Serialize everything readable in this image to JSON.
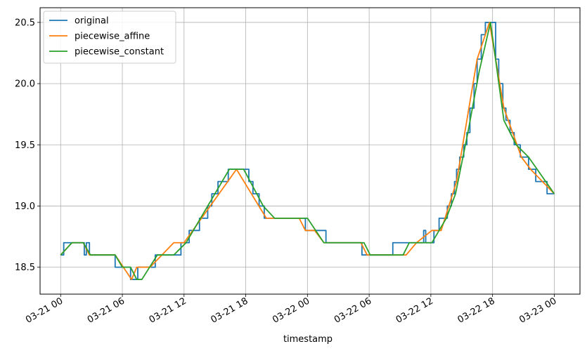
{
  "chart_data": {
    "type": "line",
    "xlabel": "timestamp",
    "ylabel": "",
    "x_unit": "hours since 03-21 00",
    "xlim": [
      -2,
      50.5
    ],
    "ylim": [
      18.28,
      20.62
    ],
    "grid": true,
    "legend_position": "top-left",
    "x_ticks": [
      {
        "value": 0,
        "label": "03-21 00"
      },
      {
        "value": 6,
        "label": "03-21 06"
      },
      {
        "value": 12,
        "label": "03-21 12"
      },
      {
        "value": 18,
        "label": "03-21 18"
      },
      {
        "value": 24,
        "label": "03-22 00"
      },
      {
        "value": 30,
        "label": "03-22 06"
      },
      {
        "value": 36,
        "label": "03-22 12"
      },
      {
        "value": 42,
        "label": "03-22 18"
      },
      {
        "value": 48,
        "label": "03-23 00"
      }
    ],
    "y_ticks": [
      {
        "value": 18.5,
        "label": "18.5"
      },
      {
        "value": 19.0,
        "label": "19.0"
      },
      {
        "value": 19.5,
        "label": "19.5"
      },
      {
        "value": 20.0,
        "label": "20.0"
      },
      {
        "value": 20.5,
        "label": "20.5"
      }
    ],
    "series": [
      {
        "name": "original",
        "color": "#1f77b4",
        "step": true,
        "points": [
          [
            0,
            18.6
          ],
          [
            0.3,
            18.7
          ],
          [
            2.3,
            18.6
          ],
          [
            2.5,
            18.7
          ],
          [
            2.8,
            18.6
          ],
          [
            5.3,
            18.5
          ],
          [
            6.8,
            18.4
          ],
          [
            7.5,
            18.5
          ],
          [
            9.2,
            18.6
          ],
          [
            11.7,
            18.7
          ],
          [
            12.5,
            18.8
          ],
          [
            13.5,
            18.9
          ],
          [
            14.3,
            19.0
          ],
          [
            14.7,
            19.1
          ],
          [
            15.3,
            19.2
          ],
          [
            16.3,
            19.3
          ],
          [
            18.3,
            19.2
          ],
          [
            18.7,
            19.1
          ],
          [
            19.3,
            19.0
          ],
          [
            19.8,
            18.9
          ],
          [
            23.8,
            18.8
          ],
          [
            25.8,
            18.7
          ],
          [
            29.3,
            18.6
          ],
          [
            32.3,
            18.7
          ],
          [
            35.3,
            18.8
          ],
          [
            35.5,
            18.7
          ],
          [
            36.3,
            18.8
          ],
          [
            36.8,
            18.9
          ],
          [
            37.6,
            19.0
          ],
          [
            38.0,
            19.1
          ],
          [
            38.3,
            19.2
          ],
          [
            38.5,
            19.3
          ],
          [
            38.8,
            19.4
          ],
          [
            39.2,
            19.5
          ],
          [
            39.5,
            19.6
          ],
          [
            39.8,
            19.8
          ],
          [
            40.2,
            20.0
          ],
          [
            40.5,
            20.2
          ],
          [
            40.9,
            20.4
          ],
          [
            41.3,
            20.5
          ],
          [
            41.7,
            20.5
          ],
          [
            42.3,
            20.2
          ],
          [
            42.6,
            20.0
          ],
          [
            43.0,
            19.8
          ],
          [
            43.3,
            19.7
          ],
          [
            43.7,
            19.6
          ],
          [
            44.1,
            19.5
          ],
          [
            44.7,
            19.4
          ],
          [
            45.5,
            19.3
          ],
          [
            46.2,
            19.2
          ],
          [
            47.3,
            19.1
          ],
          [
            48.0,
            19.1
          ]
        ]
      },
      {
        "name": "piecewise_affine",
        "color": "#ff7f0e",
        "step": false,
        "points": [
          [
            0,
            18.6
          ],
          [
            1.1,
            18.7
          ],
          [
            2.2,
            18.7
          ],
          [
            2.8,
            18.6
          ],
          [
            5.3,
            18.6
          ],
          [
            6.1,
            18.5
          ],
          [
            6.9,
            18.4
          ],
          [
            7.4,
            18.5
          ],
          [
            8.7,
            18.5
          ],
          [
            11.0,
            18.7
          ],
          [
            12.0,
            18.7
          ],
          [
            17.1,
            19.3
          ],
          [
            20.0,
            18.9
          ],
          [
            23.2,
            18.9
          ],
          [
            23.8,
            18.8
          ],
          [
            24.7,
            18.8
          ],
          [
            25.6,
            18.7
          ],
          [
            29.2,
            18.7
          ],
          [
            29.8,
            18.6
          ],
          [
            33.6,
            18.6
          ],
          [
            34.6,
            18.7
          ],
          [
            36.1,
            18.8
          ],
          [
            37.0,
            18.8
          ],
          [
            38.5,
            19.2
          ],
          [
            39.5,
            19.7
          ],
          [
            40.5,
            20.2
          ],
          [
            41.7,
            20.5
          ],
          [
            43.1,
            19.8
          ],
          [
            44.8,
            19.4
          ],
          [
            45.7,
            19.3
          ],
          [
            48.0,
            19.1
          ]
        ]
      },
      {
        "name": "piecewise_constant",
        "color": "#2ca02c",
        "step": false,
        "points": [
          [
            0,
            18.6
          ],
          [
            1.1,
            18.7
          ],
          [
            2.2,
            18.7
          ],
          [
            2.9,
            18.6
          ],
          [
            5.3,
            18.6
          ],
          [
            6.0,
            18.5
          ],
          [
            6.8,
            18.5
          ],
          [
            7.4,
            18.4
          ],
          [
            7.9,
            18.4
          ],
          [
            9.4,
            18.6
          ],
          [
            11.0,
            18.6
          ],
          [
            12.2,
            18.7
          ],
          [
            16.4,
            19.3
          ],
          [
            17.8,
            19.3
          ],
          [
            19.7,
            19.0
          ],
          [
            20.8,
            18.9
          ],
          [
            24.0,
            18.9
          ],
          [
            25.6,
            18.7
          ],
          [
            29.5,
            18.7
          ],
          [
            30.1,
            18.6
          ],
          [
            33.3,
            18.6
          ],
          [
            33.9,
            18.7
          ],
          [
            36.1,
            18.7
          ],
          [
            37.5,
            18.9
          ],
          [
            38.4,
            19.1
          ],
          [
            39.6,
            19.6
          ],
          [
            40.7,
            20.1
          ],
          [
            41.8,
            20.5
          ],
          [
            43.1,
            19.7
          ],
          [
            44.3,
            19.5
          ],
          [
            45.5,
            19.4
          ],
          [
            48.0,
            19.1
          ]
        ]
      }
    ]
  }
}
